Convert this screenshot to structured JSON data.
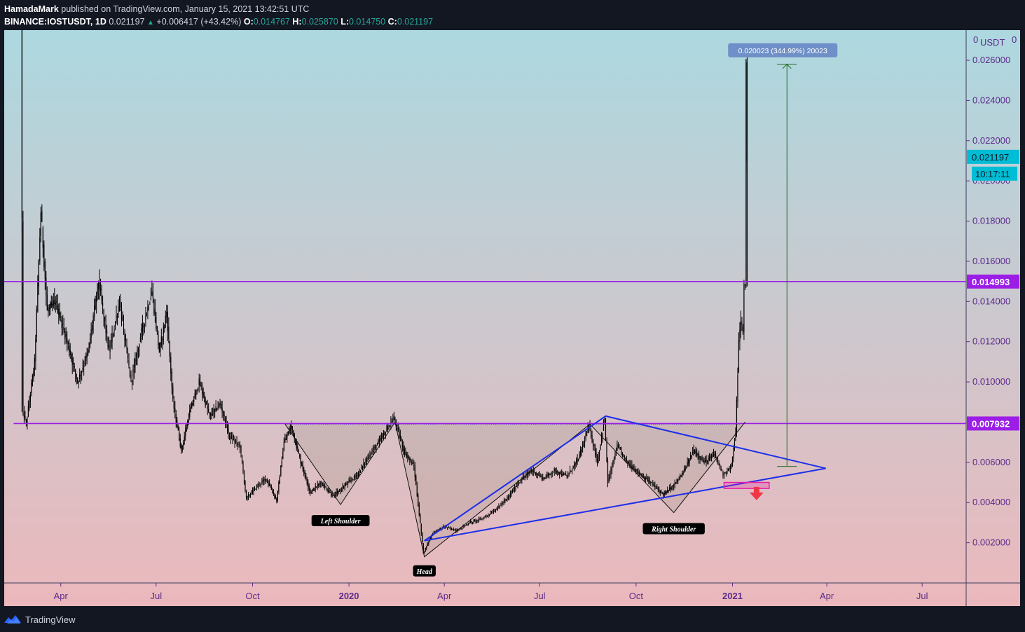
{
  "header": {
    "publisher_line": "HamadaMark published on TradingView.com, January 15, 2021 13:42:51 UTC",
    "publisher": "HamadaMark",
    "symbol_line": "BINANCE:IOSTUSDT, 1D",
    "price": "0.021197",
    "change": "+0.006417 (+43.42%)",
    "open_label": "O:",
    "open": "0.014767",
    "high_label": "H:",
    "high": "0.025870",
    "low_label": "L:",
    "low": "0.014750",
    "close_label": "C:",
    "close": "0.021197"
  },
  "footer": {
    "brand": "TradingView"
  },
  "chart_data": {
    "type": "candlestick",
    "symbol": "IOSTUSDT",
    "interval": "1D",
    "currency_label": "USDT",
    "ylim": [
      0,
      0.0275
    ],
    "y_ticks": [
      "0.002000",
      "0.004000",
      "0.006000",
      "0.008000",
      "0.010000",
      "0.012000",
      "0.014000",
      "0.016000",
      "0.018000",
      "0.020000",
      "0.022000",
      "0.024000",
      "0.026000"
    ],
    "top_tick_label": "0",
    "x_ticks": [
      {
        "label": "Apr",
        "date": "2019-04-01",
        "bold": false
      },
      {
        "label": "Jul",
        "date": "2019-07-01",
        "bold": false
      },
      {
        "label": "Oct",
        "date": "2019-10-01",
        "bold": false
      },
      {
        "label": "2020",
        "date": "2020-01-01",
        "bold": true
      },
      {
        "label": "Apr",
        "date": "2020-04-01",
        "bold": false
      },
      {
        "label": "Jul",
        "date": "2020-07-01",
        "bold": false
      },
      {
        "label": "Oct",
        "date": "2020-10-01",
        "bold": false
      },
      {
        "label": "2021",
        "date": "2021-01-01",
        "bold": true
      },
      {
        "label": "Apr",
        "date": "2021-04-01",
        "bold": false
      },
      {
        "label": "Jul",
        "date": "2021-07-01",
        "bold": false
      }
    ],
    "x_range": [
      "2019-02-06",
      "2021-08-12"
    ],
    "price_path": [
      {
        "date": "2019-02-23",
        "value": 0.0275
      },
      {
        "date": "2019-02-25",
        "value": 0.0085
      },
      {
        "date": "2019-02-28",
        "value": 0.0079
      },
      {
        "date": "2019-03-08",
        "value": 0.011
      },
      {
        "date": "2019-03-14",
        "value": 0.0185
      },
      {
        "date": "2019-03-20",
        "value": 0.0135
      },
      {
        "date": "2019-03-28",
        "value": 0.014
      },
      {
        "date": "2019-04-08",
        "value": 0.012
      },
      {
        "date": "2019-04-18",
        "value": 0.01
      },
      {
        "date": "2019-04-28",
        "value": 0.0115
      },
      {
        "date": "2019-05-08",
        "value": 0.015
      },
      {
        "date": "2019-05-18",
        "value": 0.0115
      },
      {
        "date": "2019-05-28",
        "value": 0.014
      },
      {
        "date": "2019-06-08",
        "value": 0.01
      },
      {
        "date": "2019-06-18",
        "value": 0.0125
      },
      {
        "date": "2019-06-28",
        "value": 0.0145
      },
      {
        "date": "2019-07-05",
        "value": 0.0115
      },
      {
        "date": "2019-07-12",
        "value": 0.0135
      },
      {
        "date": "2019-07-18",
        "value": 0.009
      },
      {
        "date": "2019-07-26",
        "value": 0.0066
      },
      {
        "date": "2019-08-03",
        "value": 0.0085
      },
      {
        "date": "2019-08-12",
        "value": 0.01
      },
      {
        "date": "2019-08-22",
        "value": 0.0083
      },
      {
        "date": "2019-09-01",
        "value": 0.0089
      },
      {
        "date": "2019-09-10",
        "value": 0.0073
      },
      {
        "date": "2019-09-20",
        "value": 0.0068
      },
      {
        "date": "2019-09-26",
        "value": 0.0042
      },
      {
        "date": "2019-10-06",
        "value": 0.0048
      },
      {
        "date": "2019-10-15",
        "value": 0.0052
      },
      {
        "date": "2019-10-25",
        "value": 0.0041
      },
      {
        "date": "2019-11-01",
        "value": 0.007
      },
      {
        "date": "2019-11-08",
        "value": 0.0078
      },
      {
        "date": "2019-11-16",
        "value": 0.0062
      },
      {
        "date": "2019-11-26",
        "value": 0.0045
      },
      {
        "date": "2019-12-06",
        "value": 0.005
      },
      {
        "date": "2019-12-18",
        "value": 0.0043
      },
      {
        "date": "2019-12-28",
        "value": 0.0048
      },
      {
        "date": "2020-01-10",
        "value": 0.0054
      },
      {
        "date": "2020-01-22",
        "value": 0.0064
      },
      {
        "date": "2020-02-02",
        "value": 0.0072
      },
      {
        "date": "2020-02-14",
        "value": 0.0082
      },
      {
        "date": "2020-02-24",
        "value": 0.0065
      },
      {
        "date": "2020-03-04",
        "value": 0.0058
      },
      {
        "date": "2020-03-13",
        "value": 0.0015
      },
      {
        "date": "2020-03-22",
        "value": 0.0025
      },
      {
        "date": "2020-04-02",
        "value": 0.0028
      },
      {
        "date": "2020-04-14",
        "value": 0.0026
      },
      {
        "date": "2020-04-26",
        "value": 0.003
      },
      {
        "date": "2020-05-08",
        "value": 0.0032
      },
      {
        "date": "2020-05-20",
        "value": 0.0036
      },
      {
        "date": "2020-06-01",
        "value": 0.0042
      },
      {
        "date": "2020-06-12",
        "value": 0.005
      },
      {
        "date": "2020-06-24",
        "value": 0.0056
      },
      {
        "date": "2020-07-06",
        "value": 0.0052
      },
      {
        "date": "2020-07-16",
        "value": 0.0056
      },
      {
        "date": "2020-07-28",
        "value": 0.0053
      },
      {
        "date": "2020-08-08",
        "value": 0.0062
      },
      {
        "date": "2020-08-18",
        "value": 0.0078
      },
      {
        "date": "2020-08-26",
        "value": 0.006
      },
      {
        "date": "2020-09-02",
        "value": 0.0082
      },
      {
        "date": "2020-09-05",
        "value": 0.005
      },
      {
        "date": "2020-09-14",
        "value": 0.0068
      },
      {
        "date": "2020-09-24",
        "value": 0.006
      },
      {
        "date": "2020-10-06",
        "value": 0.0054
      },
      {
        "date": "2020-10-18",
        "value": 0.0049
      },
      {
        "date": "2020-10-28",
        "value": 0.0044
      },
      {
        "date": "2020-11-06",
        "value": 0.0048
      },
      {
        "date": "2020-11-16",
        "value": 0.0055
      },
      {
        "date": "2020-11-26",
        "value": 0.0066
      },
      {
        "date": "2020-12-06",
        "value": 0.006
      },
      {
        "date": "2020-12-16",
        "value": 0.0064
      },
      {
        "date": "2020-12-24",
        "value": 0.0054
      },
      {
        "date": "2021-01-01",
        "value": 0.0058
      },
      {
        "date": "2021-01-05",
        "value": 0.0075
      },
      {
        "date": "2021-01-08",
        "value": 0.012
      },
      {
        "date": "2021-01-10",
        "value": 0.013
      },
      {
        "date": "2021-01-12",
        "value": 0.0125
      },
      {
        "date": "2021-01-13",
        "value": 0.0148
      },
      {
        "date": "2021-01-14",
        "value": 0.015
      },
      {
        "date": "2021-01-15",
        "value": 0.0259
      },
      {
        "date": "2021-01-15",
        "value": 0.0212
      }
    ],
    "horizontal_levels": [
      {
        "value": 0.014993,
        "label": "0.014993",
        "from": "2018-12-05"
      },
      {
        "value": 0.007932,
        "label": "0.007932",
        "from": "2019-02-15"
      }
    ],
    "current_price": {
      "value": 0.021197,
      "label": "0.021197",
      "countdown": "10:17:11"
    },
    "neckline_dotted": {
      "from": "2019-11-01",
      "to": "2021-01-08",
      "value": 0.0079
    },
    "hs_pattern": [
      {
        "date": "2019-11-01",
        "value": 0.0079
      },
      {
        "date": "2019-12-24",
        "value": 0.0039
      },
      {
        "date": "2020-02-14",
        "value": 0.008
      },
      {
        "date": "2020-03-13",
        "value": 0.0013
      },
      {
        "date": "2020-08-18",
        "value": 0.0079
      },
      {
        "date": "2020-11-06",
        "value": 0.0035
      },
      {
        "date": "2021-01-13",
        "value": 0.008
      }
    ],
    "pattern_labels": [
      {
        "text": "Left Shoulder",
        "date": "2019-12-24",
        "value": 0.0031
      },
      {
        "text": "Head",
        "date": "2020-03-13",
        "value": 0.0006
      },
      {
        "text": "Right Shoulder",
        "date": "2020-11-06",
        "value": 0.0027
      }
    ],
    "triangle": [
      {
        "date": "2020-03-13",
        "value": 0.0021
      },
      {
        "date": "2021-03-31",
        "value": 0.0057
      },
      {
        "date": "2020-09-02",
        "value": 0.0083
      }
    ],
    "measure": {
      "date": "2021-02-22",
      "from": 0.0058,
      "to": 0.0258,
      "label": "0.020023 (344.99%) 20023"
    },
    "support_box": {
      "from": "2020-12-24",
      "to": "2021-02-05",
      "low": 0.0047,
      "high": 0.005
    },
    "down_arrow": {
      "date": "2021-01-24",
      "value": 0.0045
    },
    "colors": {
      "background_top": "#add8e0",
      "background_bottom": "#ebb8bc",
      "level_line": "#9c1ee6",
      "triangle": "#1e2fe8",
      "current_price": "#00bcd4",
      "measure": "#1f6b1f",
      "measure_label": "#6e8fc7",
      "arrow": "#f23645",
      "support_box": "#e91ea8",
      "axis_text": "#5c2a8a",
      "candle": "#000000"
    }
  }
}
